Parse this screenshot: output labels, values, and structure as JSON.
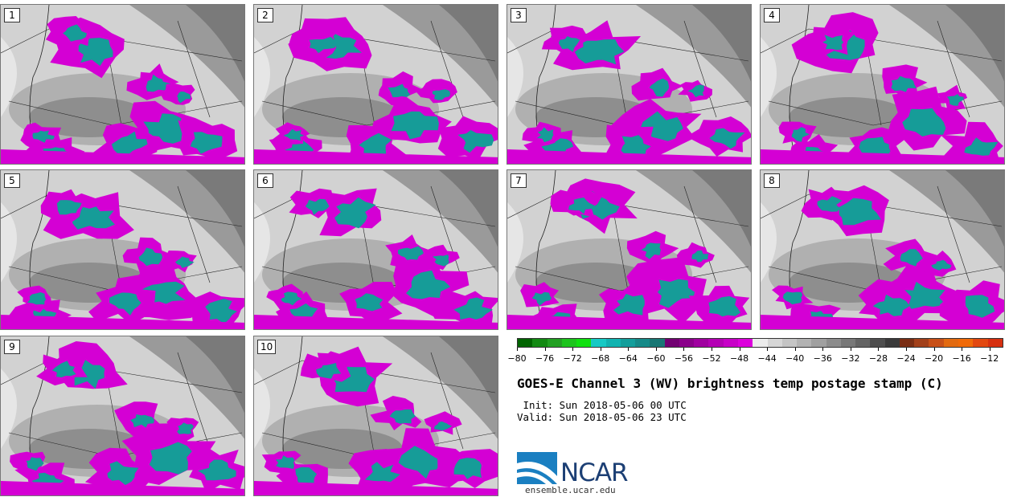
{
  "panels": [
    {
      "label": "1"
    },
    {
      "label": "2"
    },
    {
      "label": "3"
    },
    {
      "label": "4"
    },
    {
      "label": "5"
    },
    {
      "label": "6"
    },
    {
      "label": "7"
    },
    {
      "label": "8"
    },
    {
      "label": "9"
    },
    {
      "label": "10"
    }
  ],
  "colorbar": {
    "colors": [
      "#006400",
      "#138a13",
      "#22a022",
      "#1cc41c",
      "#10e010",
      "#16c9c4",
      "#11b3b0",
      "#139e9b",
      "#158a88",
      "#187774",
      "#720072",
      "#8a008a",
      "#a000a0",
      "#b400b4",
      "#c800c8",
      "#dc00dc",
      "#ececec",
      "#d6d6d6",
      "#c4c4c4",
      "#b2b2b2",
      "#a0a0a0",
      "#8c8c8c",
      "#787878",
      "#646464",
      "#4e4e4e",
      "#3a3a3a",
      "#7a2e14",
      "#a2401a",
      "#c85018",
      "#e26a10",
      "#f06a08",
      "#e24810",
      "#d63010"
    ],
    "ticks": [
      {
        "value": -80,
        "label": "−80"
      },
      {
        "value": -76,
        "label": "−76"
      },
      {
        "value": -72,
        "label": "−72"
      },
      {
        "value": -68,
        "label": "−68"
      },
      {
        "value": -64,
        "label": "−64"
      },
      {
        "value": -60,
        "label": "−60"
      },
      {
        "value": -56,
        "label": "−56"
      },
      {
        "value": -52,
        "label": "−52"
      },
      {
        "value": -48,
        "label": "−48"
      },
      {
        "value": -44,
        "label": "−44"
      },
      {
        "value": -40,
        "label": "−40"
      },
      {
        "value": -36,
        "label": "−36"
      },
      {
        "value": -32,
        "label": "−32"
      },
      {
        "value": -28,
        "label": "−28"
      },
      {
        "value": -24,
        "label": "−24"
      },
      {
        "value": -20,
        "label": "−20"
      },
      {
        "value": -16,
        "label": "−16"
      },
      {
        "value": -12,
        "label": "−12"
      }
    ],
    "min": -80,
    "max": -10
  },
  "title": "GOES-E Channel 3 (WV) brightness temp postage stamp (C)",
  "init": " Init: Sun 2018-05-06 00 UTC",
  "valid": "Valid: Sun 2018-05-06 23 UTC",
  "logo": {
    "text": "NCAR",
    "color": "#1c3f74",
    "accent": "#1a7fc1"
  },
  "site": "ensemble.ucar.edu"
}
